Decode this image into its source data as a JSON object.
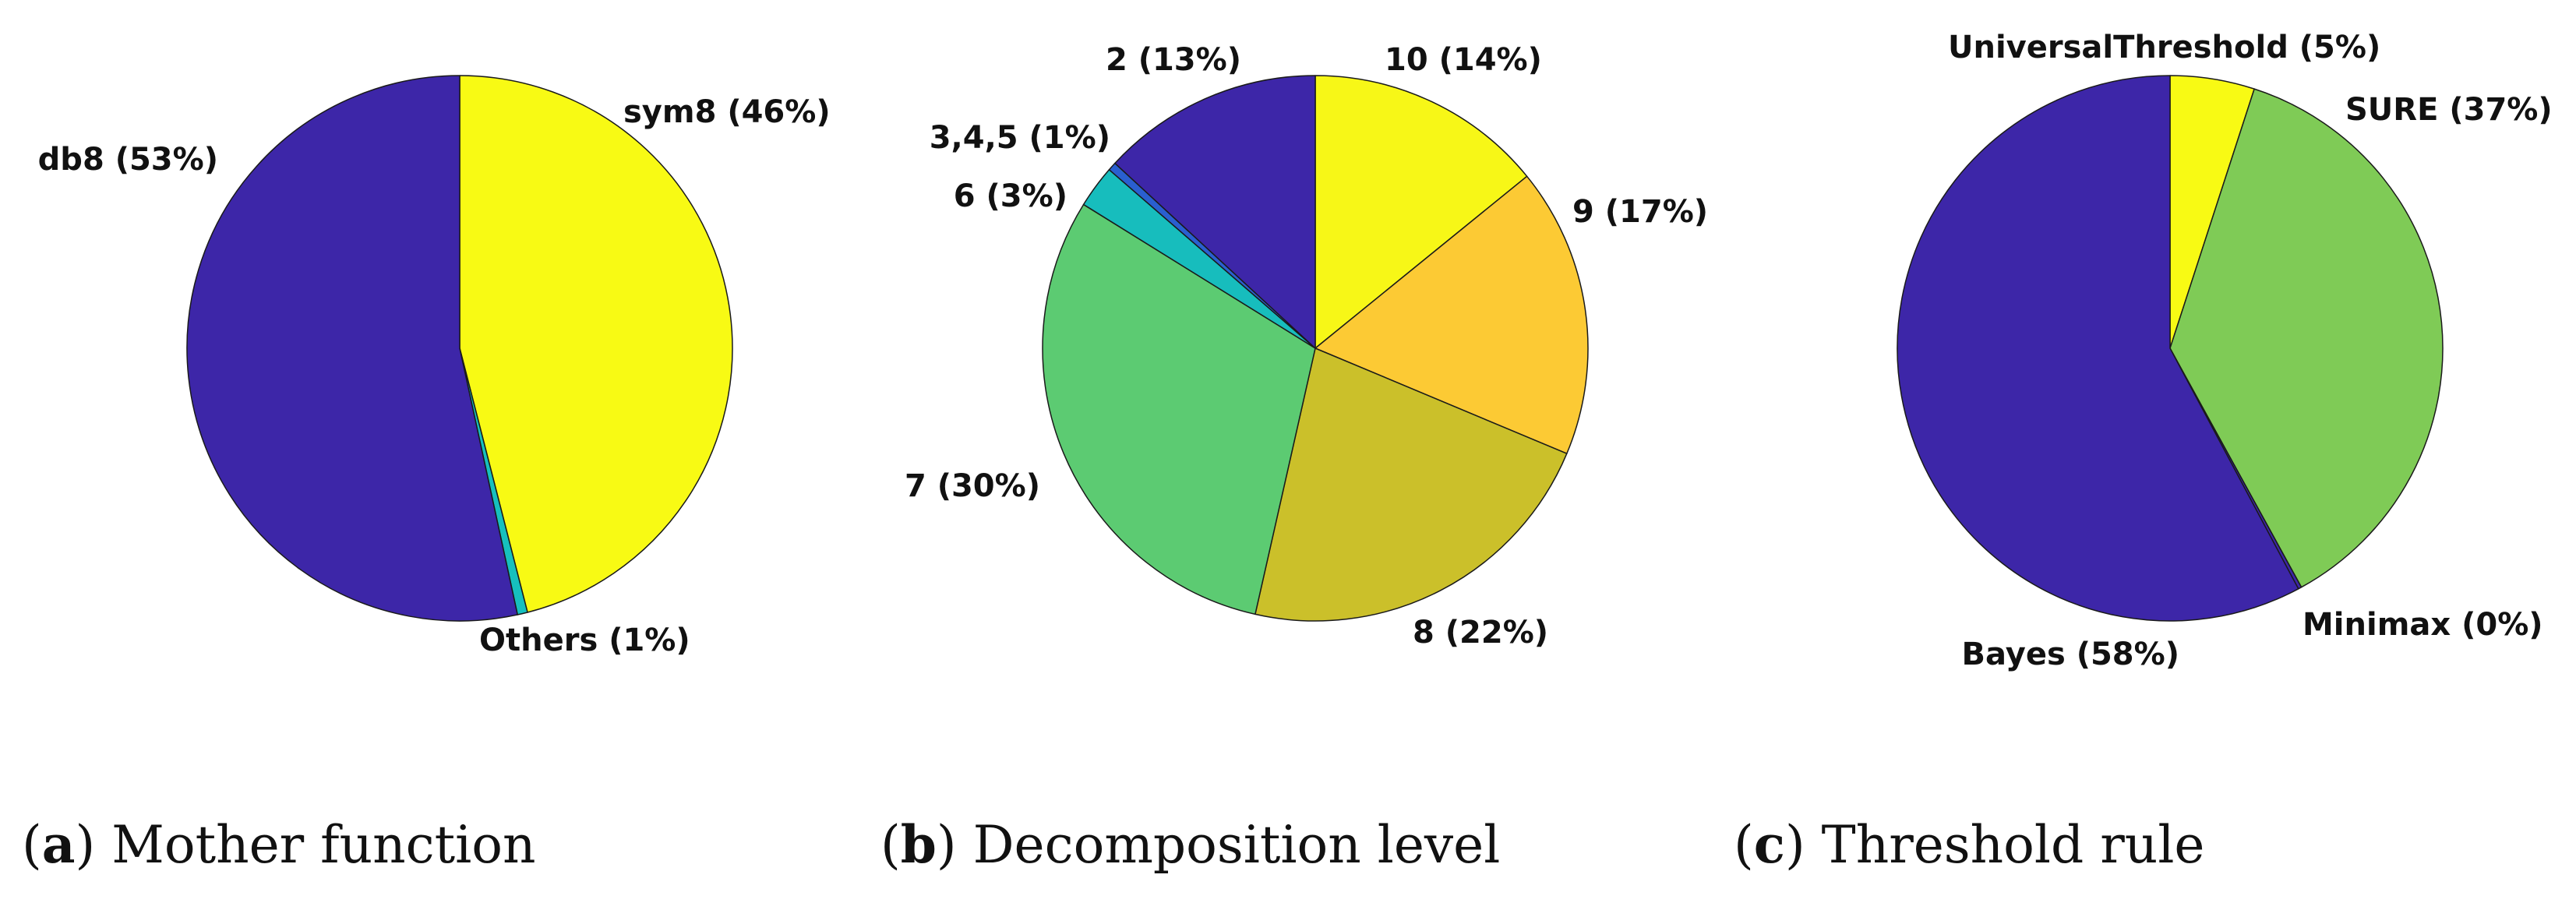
{
  "captions": [
    {
      "letter": "a",
      "text": "Mother function"
    },
    {
      "letter": "b",
      "text": "Decomposition level"
    },
    {
      "letter": "c",
      "text": "Threshold rule"
    }
  ],
  "chart_data": [
    {
      "type": "pie",
      "title": "(a) Mother function",
      "slices": [
        {
          "label": "sym8 (46%)",
          "value": 46,
          "color": "#F8FA14"
        },
        {
          "label": "Others (1%)",
          "value": 0.6,
          "color": "#16C0BE"
        },
        {
          "label": "db8 (53%)",
          "value": 53.4,
          "color": "#3D26A8"
        }
      ]
    },
    {
      "type": "pie",
      "title": "(b) Decomposition level",
      "slices": [
        {
          "label": "10 (14%)",
          "value": 14,
          "color": "#F7F717"
        },
        {
          "label": "9 (17%)",
          "value": 17,
          "color": "#FCCA34"
        },
        {
          "label": "8 (22%)",
          "value": 22,
          "color": "#CBC02A"
        },
        {
          "label": "7 (30%)",
          "value": 30,
          "color": "#5CCB72"
        },
        {
          "label": "6 (3%)",
          "value": 2.5,
          "color": "#17BDBD"
        },
        {
          "label": "3,4,5 (1%)",
          "value": 0.5,
          "color": "#2A5FD0"
        },
        {
          "label": "2 (13%)",
          "value": 13,
          "color": "#3D26A8"
        }
      ]
    },
    {
      "type": "pie",
      "title": "(c) Threshold rule",
      "slices": [
        {
          "label": "UniversalThreshold (5%)",
          "value": 5,
          "color": "#F8FA14"
        },
        {
          "label": "SURE (37%)",
          "value": 37,
          "color": "#7FCB56"
        },
        {
          "label": "Minimax (0%)",
          "value": 0.2,
          "color": "#3D26A8"
        },
        {
          "label": "Bayes (58%)",
          "value": 57.8,
          "color": "#3D26A8"
        }
      ]
    }
  ]
}
